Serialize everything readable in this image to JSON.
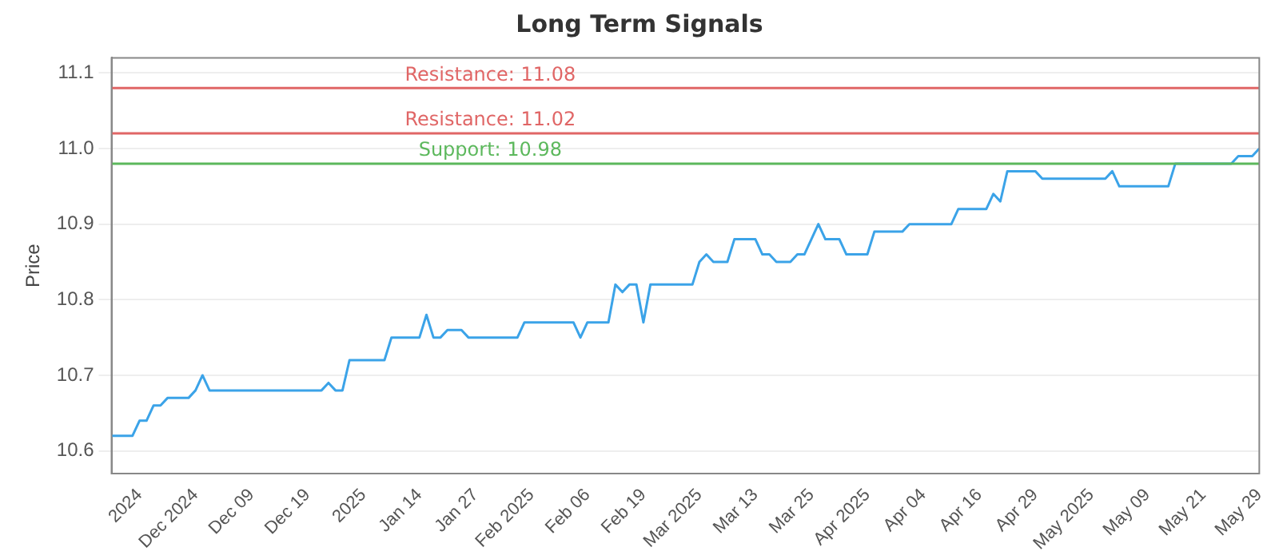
{
  "chart_data": {
    "type": "line",
    "title": "Long Term Signals",
    "ylabel": "Price",
    "categories": [
      null,
      null,
      null,
      null,
      "2024",
      null,
      null,
      null,
      null,
      null,
      null,
      null,
      "Dec 2024",
      null,
      null,
      null,
      null,
      null,
      null,
      null,
      "Dec 09",
      null,
      null,
      null,
      null,
      null,
      null,
      null,
      "Dec 19",
      null,
      null,
      null,
      null,
      null,
      null,
      null,
      "2025",
      null,
      null,
      null,
      null,
      null,
      null,
      null,
      "Jan 14",
      null,
      null,
      null,
      null,
      null,
      null,
      null,
      "Jan 27",
      null,
      null,
      null,
      null,
      null,
      null,
      null,
      "Feb 2025",
      null,
      null,
      null,
      null,
      null,
      null,
      null,
      "Feb 06",
      null,
      null,
      null,
      null,
      null,
      null,
      null,
      "Feb 19",
      null,
      null,
      null,
      null,
      null,
      null,
      null,
      "Mar 2025",
      null,
      null,
      null,
      null,
      null,
      null,
      null,
      "Mar 13",
      null,
      null,
      null,
      null,
      null,
      null,
      null,
      "Mar 25",
      null,
      null,
      null,
      null,
      null,
      null,
      null,
      "Apr 2025",
      null,
      null,
      null,
      null,
      null,
      null,
      null,
      "Apr 04",
      null,
      null,
      null,
      null,
      null,
      null,
      null,
      "Apr 16",
      null,
      null,
      null,
      null,
      null,
      null,
      null,
      "Apr 29",
      null,
      null,
      null,
      null,
      null,
      null,
      null,
      "May 2025",
      null,
      null,
      null,
      null,
      null,
      null,
      null,
      "May 09",
      null,
      null,
      null,
      null,
      null,
      null,
      null,
      "May 21",
      null,
      null,
      null,
      null,
      null,
      null,
      null,
      "May 29"
    ],
    "series": [
      {
        "color": "#3ba3e8",
        "values": [
          10.62,
          10.62,
          10.62,
          10.62,
          10.64,
          10.64,
          10.66,
          10.66,
          10.67,
          10.67,
          10.67,
          10.67,
          10.68,
          10.7,
          10.68,
          10.68,
          10.68,
          10.68,
          10.68,
          10.68,
          10.68,
          10.68,
          10.68,
          10.68,
          10.68,
          10.68,
          10.68,
          10.68,
          10.68,
          10.68,
          10.68,
          10.69,
          10.68,
          10.68,
          10.72,
          10.72,
          10.72,
          10.72,
          10.72,
          10.72,
          10.75,
          10.75,
          10.75,
          10.75,
          10.75,
          10.78,
          10.75,
          10.75,
          10.76,
          10.76,
          10.76,
          10.75,
          10.75,
          10.75,
          10.75,
          10.75,
          10.75,
          10.75,
          10.75,
          10.77,
          10.77,
          10.77,
          10.77,
          10.77,
          10.77,
          10.77,
          10.77,
          10.75,
          10.77,
          10.77,
          10.77,
          10.77,
          10.82,
          10.81,
          10.82,
          10.82,
          10.77,
          10.82,
          10.82,
          10.82,
          10.82,
          10.82,
          10.82,
          10.82,
          10.85,
          10.86,
          10.85,
          10.85,
          10.85,
          10.88,
          10.88,
          10.88,
          10.88,
          10.86,
          10.86,
          10.85,
          10.85,
          10.85,
          10.86,
          10.86,
          10.88,
          10.9,
          10.88,
          10.88,
          10.88,
          10.86,
          10.86,
          10.86,
          10.86,
          10.89,
          10.89,
          10.89,
          10.89,
          10.89,
          10.9,
          10.9,
          10.9,
          10.9,
          10.9,
          10.9,
          10.9,
          10.92,
          10.92,
          10.92,
          10.92,
          10.92,
          10.94,
          10.93,
          10.97,
          10.97,
          10.97,
          10.97,
          10.97,
          10.96,
          10.96,
          10.96,
          10.96,
          10.96,
          10.96,
          10.96,
          10.96,
          10.96,
          10.96,
          10.97,
          10.95,
          10.95,
          10.95,
          10.95,
          10.95,
          10.95,
          10.95,
          10.95,
          10.98,
          10.98,
          10.98,
          10.98,
          10.98,
          10.98,
          10.98,
          10.98,
          10.98,
          10.99,
          10.99,
          10.99,
          11.0
        ]
      }
    ],
    "ylim": [
      10.57,
      11.12
    ],
    "yticks": [
      10.6,
      10.7,
      10.8,
      10.9,
      {
        "value": 11.0,
        "label": "11.0"
      },
      11.1
    ],
    "ref_lines": [
      {
        "axis": "y",
        "value": 11.08,
        "label": "Resistance: 11.08",
        "color": "#e06666"
      },
      {
        "axis": "y",
        "value": 11.02,
        "label": "Resistance: 11.02",
        "color": "#e06666"
      },
      {
        "axis": "y",
        "value": 10.98,
        "label": "Support: 10.98",
        "color": "#5cb85c"
      }
    ],
    "grid": "y",
    "legend": false,
    "marker": "none",
    "line_style": "solid"
  }
}
